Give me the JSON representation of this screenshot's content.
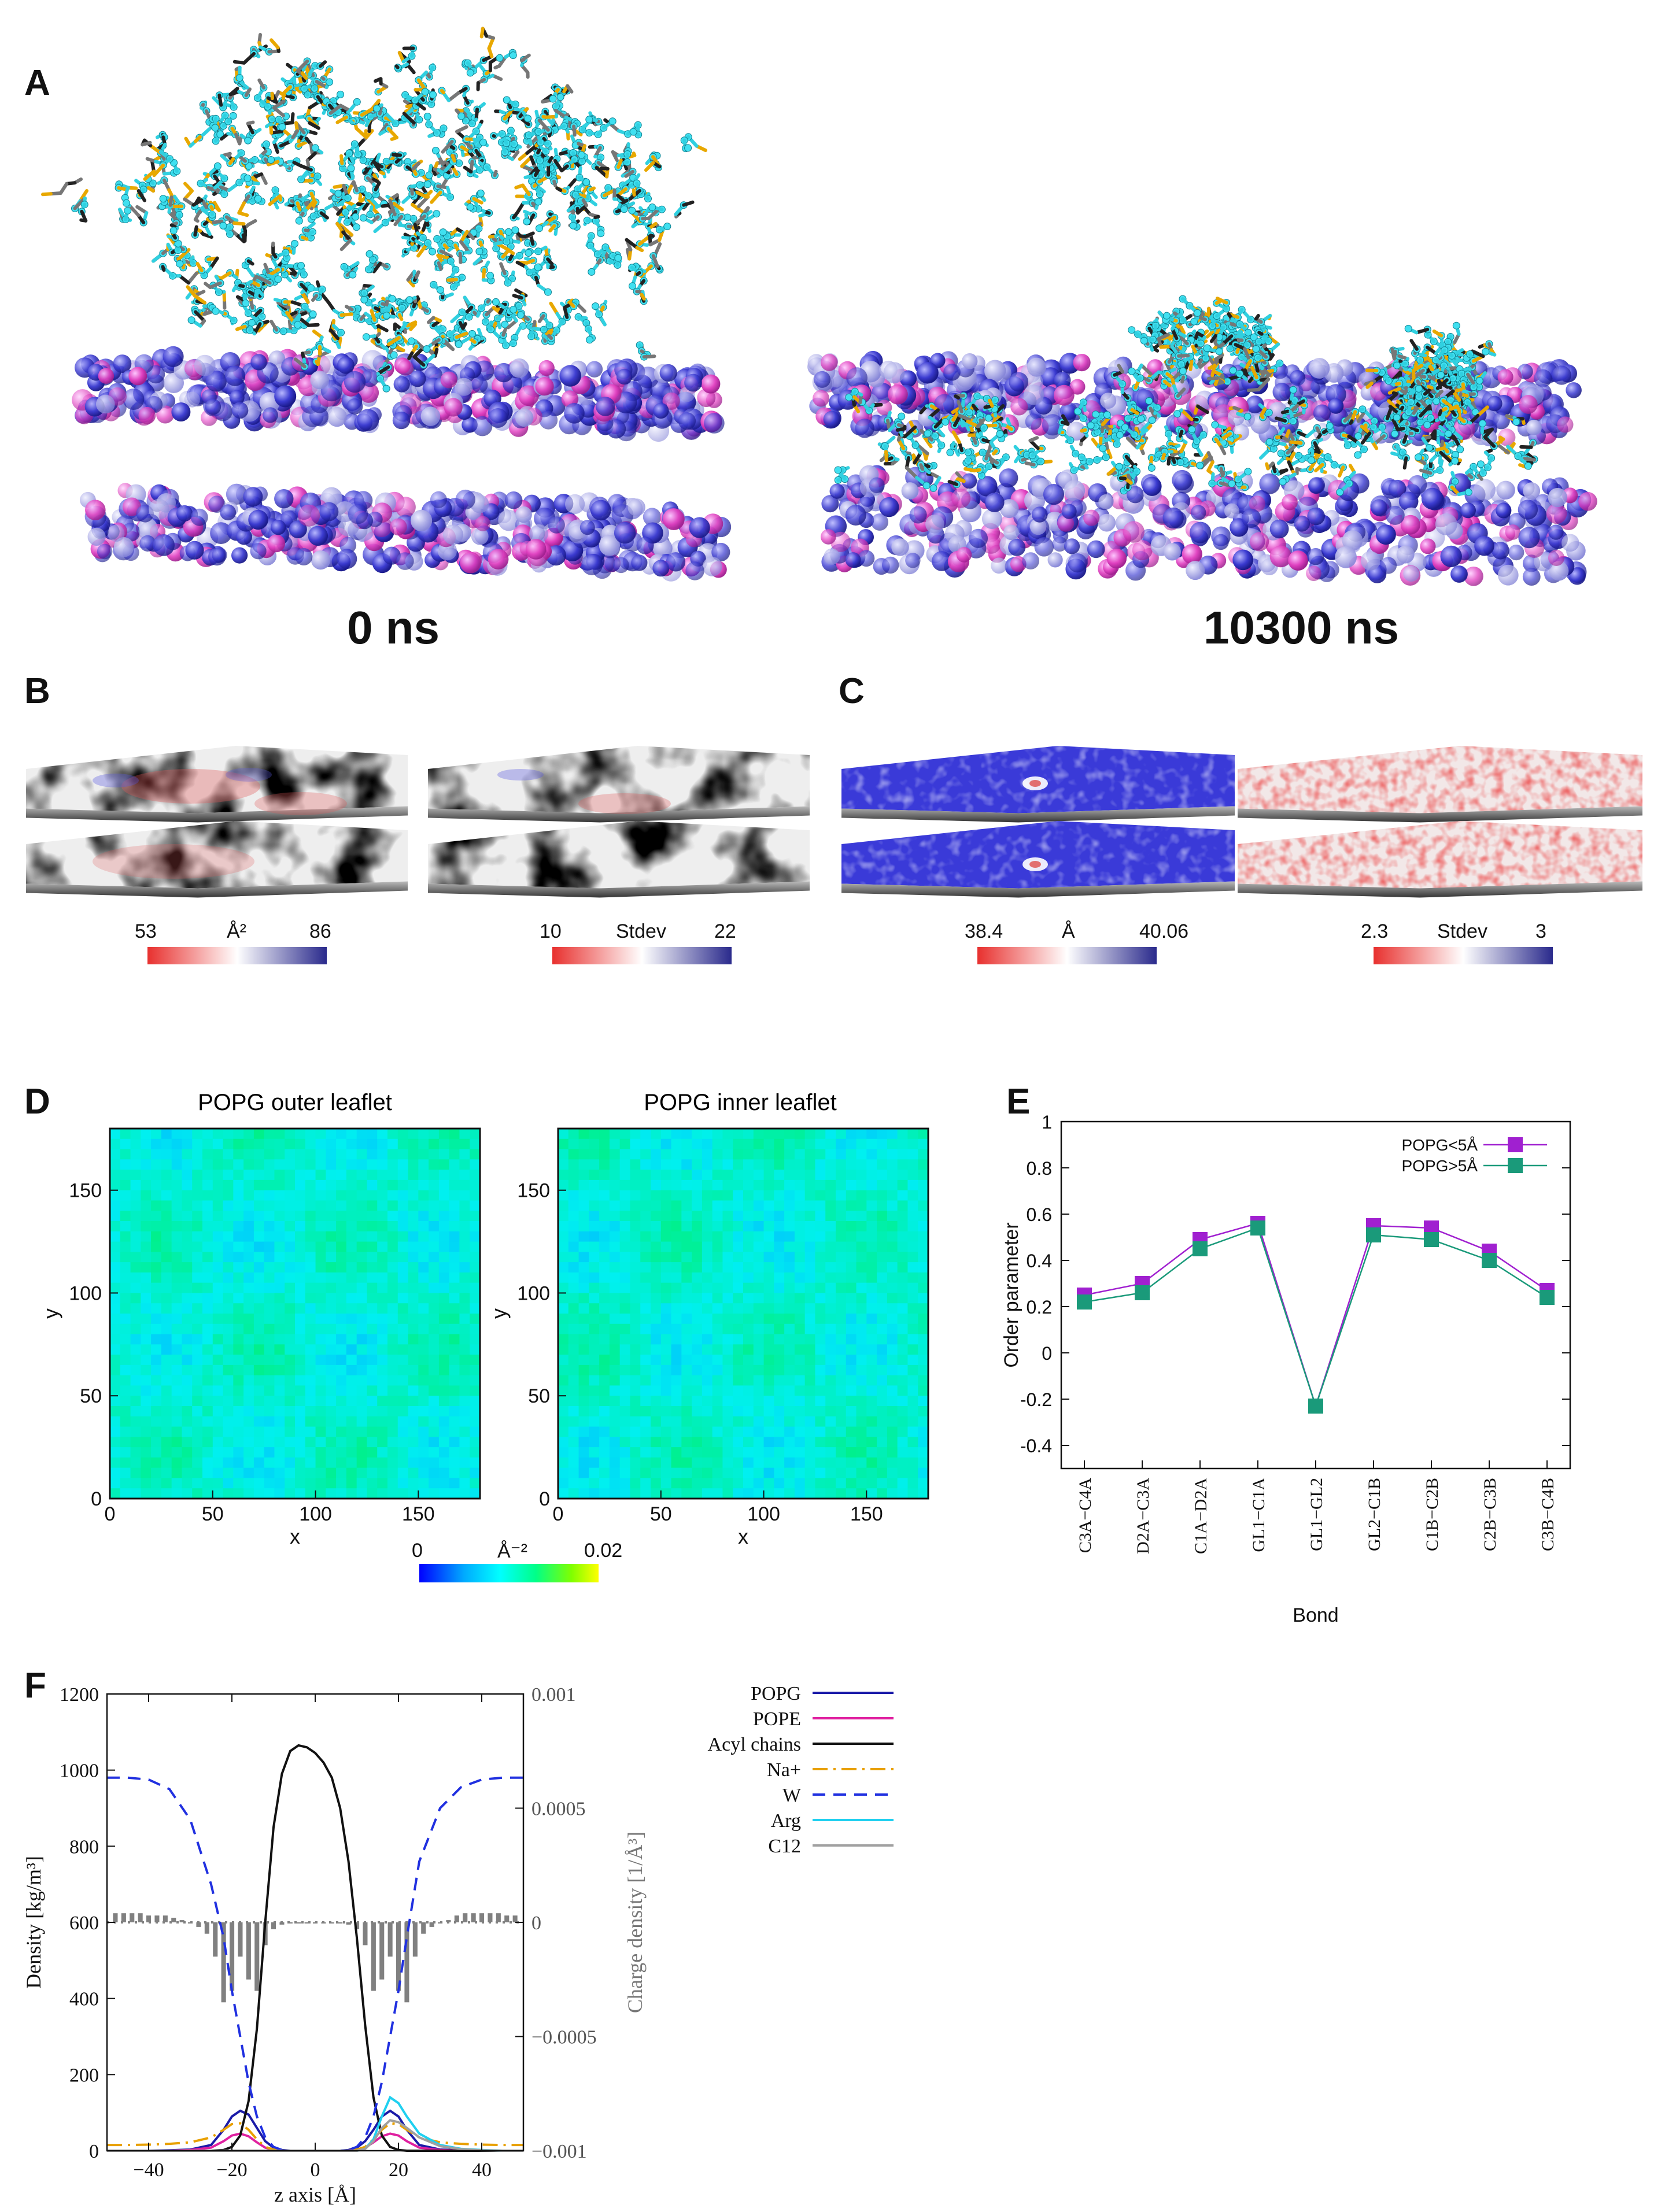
{
  "panels": {
    "A": {
      "label": "A",
      "left_time": "0 ns",
      "right_time": "10300 ns"
    },
    "B": {
      "label": "B",
      "colorbars": [
        {
          "min": "53",
          "mid": "Å²",
          "max": "86",
          "colors": [
            "#e8302e",
            "#ffffff",
            "#2a2a8c"
          ]
        },
        {
          "min": "10",
          "mid": "Stdev",
          "max": "22",
          "colors": [
            "#e8302e",
            "#ffffff",
            "#2a2a8c"
          ]
        }
      ]
    },
    "C": {
      "label": "C",
      "colorbars": [
        {
          "min": "38.4",
          "mid": "Å",
          "max": "40.06",
          "colors": [
            "#e8302e",
            "#ffffff",
            "#2a2a8c"
          ]
        },
        {
          "min": "2.3",
          "mid": "Stdev",
          "max": "3",
          "colors": [
            "#e8302e",
            "#ffffff",
            "#2a2a8c"
          ]
        }
      ]
    },
    "D": {
      "label": "D",
      "maps": [
        {
          "title": "POPG outer leaflet",
          "ylabel": "y"
        },
        {
          "title": "POPG inner leaflet",
          "ylabel": "y"
        }
      ],
      "xlabel": "x",
      "xticks": [
        "0",
        "50",
        "100",
        "150"
      ],
      "yticks": [
        "0",
        "50",
        "100",
        "150"
      ],
      "colorbar": {
        "min": "0",
        "mid": "Å⁻²",
        "max": "0.02"
      }
    },
    "E": {
      "label": "E"
    },
    "F": {
      "label": "F"
    }
  },
  "chart_data": [
    {
      "type": "line",
      "panel": "E",
      "xlabel": "Bond",
      "ylabel": "Order parameter",
      "ylim": [
        -0.5,
        1.0
      ],
      "yticks": [
        "-0.4",
        "-0.2",
        "0",
        "0.2",
        "0.4",
        "0.6",
        "0.8",
        "1"
      ],
      "categories": [
        "C3A−C4A",
        "D2A−C3A",
        "C1A−D2A",
        "GL1−C1A",
        "GL1−GL2",
        "GL2−C1B",
        "C1B−C2B",
        "C2B−C3B",
        "C3B−C4B"
      ],
      "legend_position": "top-right",
      "series": [
        {
          "name": "POPG<5Å",
          "color": "#a020d0",
          "values": [
            0.25,
            0.3,
            0.49,
            0.56,
            -0.23,
            0.55,
            0.54,
            0.44,
            0.27
          ]
        },
        {
          "name": "POPG>5Å",
          "color": "#1a9a7a",
          "values": [
            0.22,
            0.26,
            0.45,
            0.54,
            -0.23,
            0.51,
            0.49,
            0.4,
            0.24
          ]
        }
      ]
    },
    {
      "type": "line",
      "panel": "F",
      "xlabel": "z axis [Å]",
      "ylabel": "Density [kg/m³]",
      "y2label": "Charge density [1/Å³]",
      "xlim": [
        -50,
        50
      ],
      "ylim": [
        0,
        1200
      ],
      "y2lim": [
        -0.001,
        0.001
      ],
      "xticks": [
        "-40",
        "-20",
        "0",
        "20",
        "40"
      ],
      "yticks": [
        "0",
        "200",
        "400",
        "600",
        "800",
        "1000",
        "1200"
      ],
      "y2ticks": [
        "-0.001",
        "-0.0005",
        "0",
        "0.0005",
        "0.001"
      ],
      "x": [
        -50,
        -45,
        -40,
        -35,
        -30,
        -25,
        -22,
        -20,
        -18,
        -16,
        -14,
        -12,
        -10,
        -8,
        -6,
        -4,
        -2,
        0,
        2,
        4,
        6,
        8,
        10,
        12,
        14,
        16,
        18,
        20,
        22,
        25,
        30,
        35,
        40,
        45,
        50
      ],
      "series": [
        {
          "name": "POPG",
          "color": "#1a1aa8",
          "dash": "solid",
          "values": [
            0,
            0,
            0,
            1,
            3,
            15,
            55,
            90,
            105,
            95,
            60,
            25,
            8,
            2,
            0,
            0,
            0,
            0,
            0,
            0,
            0,
            2,
            8,
            25,
            55,
            90,
            105,
            90,
            55,
            15,
            3,
            1,
            0,
            0,
            0
          ]
        },
        {
          "name": "POPE",
          "color": "#e020a0",
          "dash": "solid",
          "values": [
            0,
            0,
            0,
            0,
            2,
            8,
            25,
            40,
            45,
            38,
            22,
            8,
            2,
            0,
            0,
            0,
            0,
            0,
            0,
            0,
            0,
            0,
            2,
            8,
            22,
            38,
            45,
            40,
            25,
            8,
            2,
            0,
            0,
            0,
            0
          ]
        },
        {
          "name": "Acyl chains",
          "color": "#111111",
          "dash": "solid",
          "values": [
            0,
            0,
            0,
            0,
            0,
            0,
            2,
            10,
            40,
            130,
            320,
            600,
            850,
            990,
            1050,
            1065,
            1060,
            1045,
            1020,
            980,
            900,
            760,
            560,
            330,
            140,
            40,
            10,
            2,
            0,
            0,
            0,
            0,
            0,
            0,
            0
          ]
        },
        {
          "name": "Na+",
          "color": "#e8a000",
          "dash": "dashdot",
          "values": [
            15,
            15,
            16,
            18,
            22,
            35,
            55,
            70,
            72,
            55,
            30,
            10,
            3,
            0,
            0,
            0,
            0,
            0,
            0,
            0,
            0,
            0,
            3,
            10,
            30,
            55,
            72,
            70,
            55,
            35,
            22,
            18,
            16,
            15,
            15
          ]
        },
        {
          "name": "W",
          "color": "#2030e0",
          "dash": "dashed",
          "values": [
            980,
            980,
            975,
            950,
            870,
            700,
            560,
            420,
            300,
            180,
            90,
            35,
            10,
            2,
            0,
            0,
            0,
            0,
            0,
            0,
            0,
            2,
            10,
            35,
            90,
            180,
            300,
            420,
            560,
            760,
            900,
            955,
            975,
            980,
            980
          ]
        },
        {
          "name": "Arg",
          "color": "#20d0f0",
          "dash": "solid",
          "values": [
            0,
            0,
            0,
            0,
            0,
            0,
            0,
            0,
            0,
            0,
            0,
            0,
            0,
            0,
            0,
            0,
            0,
            0,
            0,
            0,
            0,
            0,
            0,
            5,
            30,
            90,
            140,
            125,
            90,
            45,
            15,
            5,
            2,
            0,
            0
          ]
        },
        {
          "name": "C12",
          "color": "#a0a0a0",
          "dash": "solid",
          "values": [
            0,
            0,
            0,
            0,
            0,
            0,
            0,
            0,
            0,
            0,
            0,
            0,
            0,
            0,
            0,
            0,
            0,
            0,
            0,
            0,
            0,
            0,
            0,
            5,
            25,
            60,
            80,
            75,
            60,
            35,
            12,
            4,
            1,
            0,
            0
          ]
        }
      ],
      "charge_bars": {
        "color": "#808080",
        "x": [
          -48,
          -46,
          -44,
          -42,
          -40,
          -38,
          -36,
          -34,
          -32,
          -30,
          -28,
          -26,
          -24,
          -22,
          -20,
          -18,
          -16,
          -14,
          -12,
          -10,
          -8,
          -6,
          -4,
          -2,
          0,
          2,
          4,
          6,
          8,
          10,
          12,
          14,
          16,
          18,
          20,
          22,
          24,
          26,
          28,
          30,
          32,
          34,
          36,
          38,
          40,
          42,
          44,
          46,
          48
        ],
        "values": [
          4e-05,
          4e-05,
          4e-05,
          4e-05,
          3e-05,
          3e-05,
          3e-05,
          2e-05,
          1e-05,
          0,
          -2e-05,
          -5e-05,
          -0.00015,
          -0.00035,
          -0.0003,
          -0.00015,
          -0.00025,
          -0.0003,
          -0.0001,
          -3e-05,
          -1e-05,
          0,
          0,
          0,
          0,
          0,
          0,
          0,
          -1e-05,
          -3e-05,
          -0.0001,
          -0.0003,
          -0.00025,
          -0.00015,
          -0.0003,
          -0.00035,
          -0.00015,
          -5e-05,
          -2e-05,
          0,
          1e-05,
          3e-05,
          4e-05,
          4e-05,
          4e-05,
          4e-05,
          4e-05,
          3e-05,
          3e-05
        ]
      }
    }
  ]
}
